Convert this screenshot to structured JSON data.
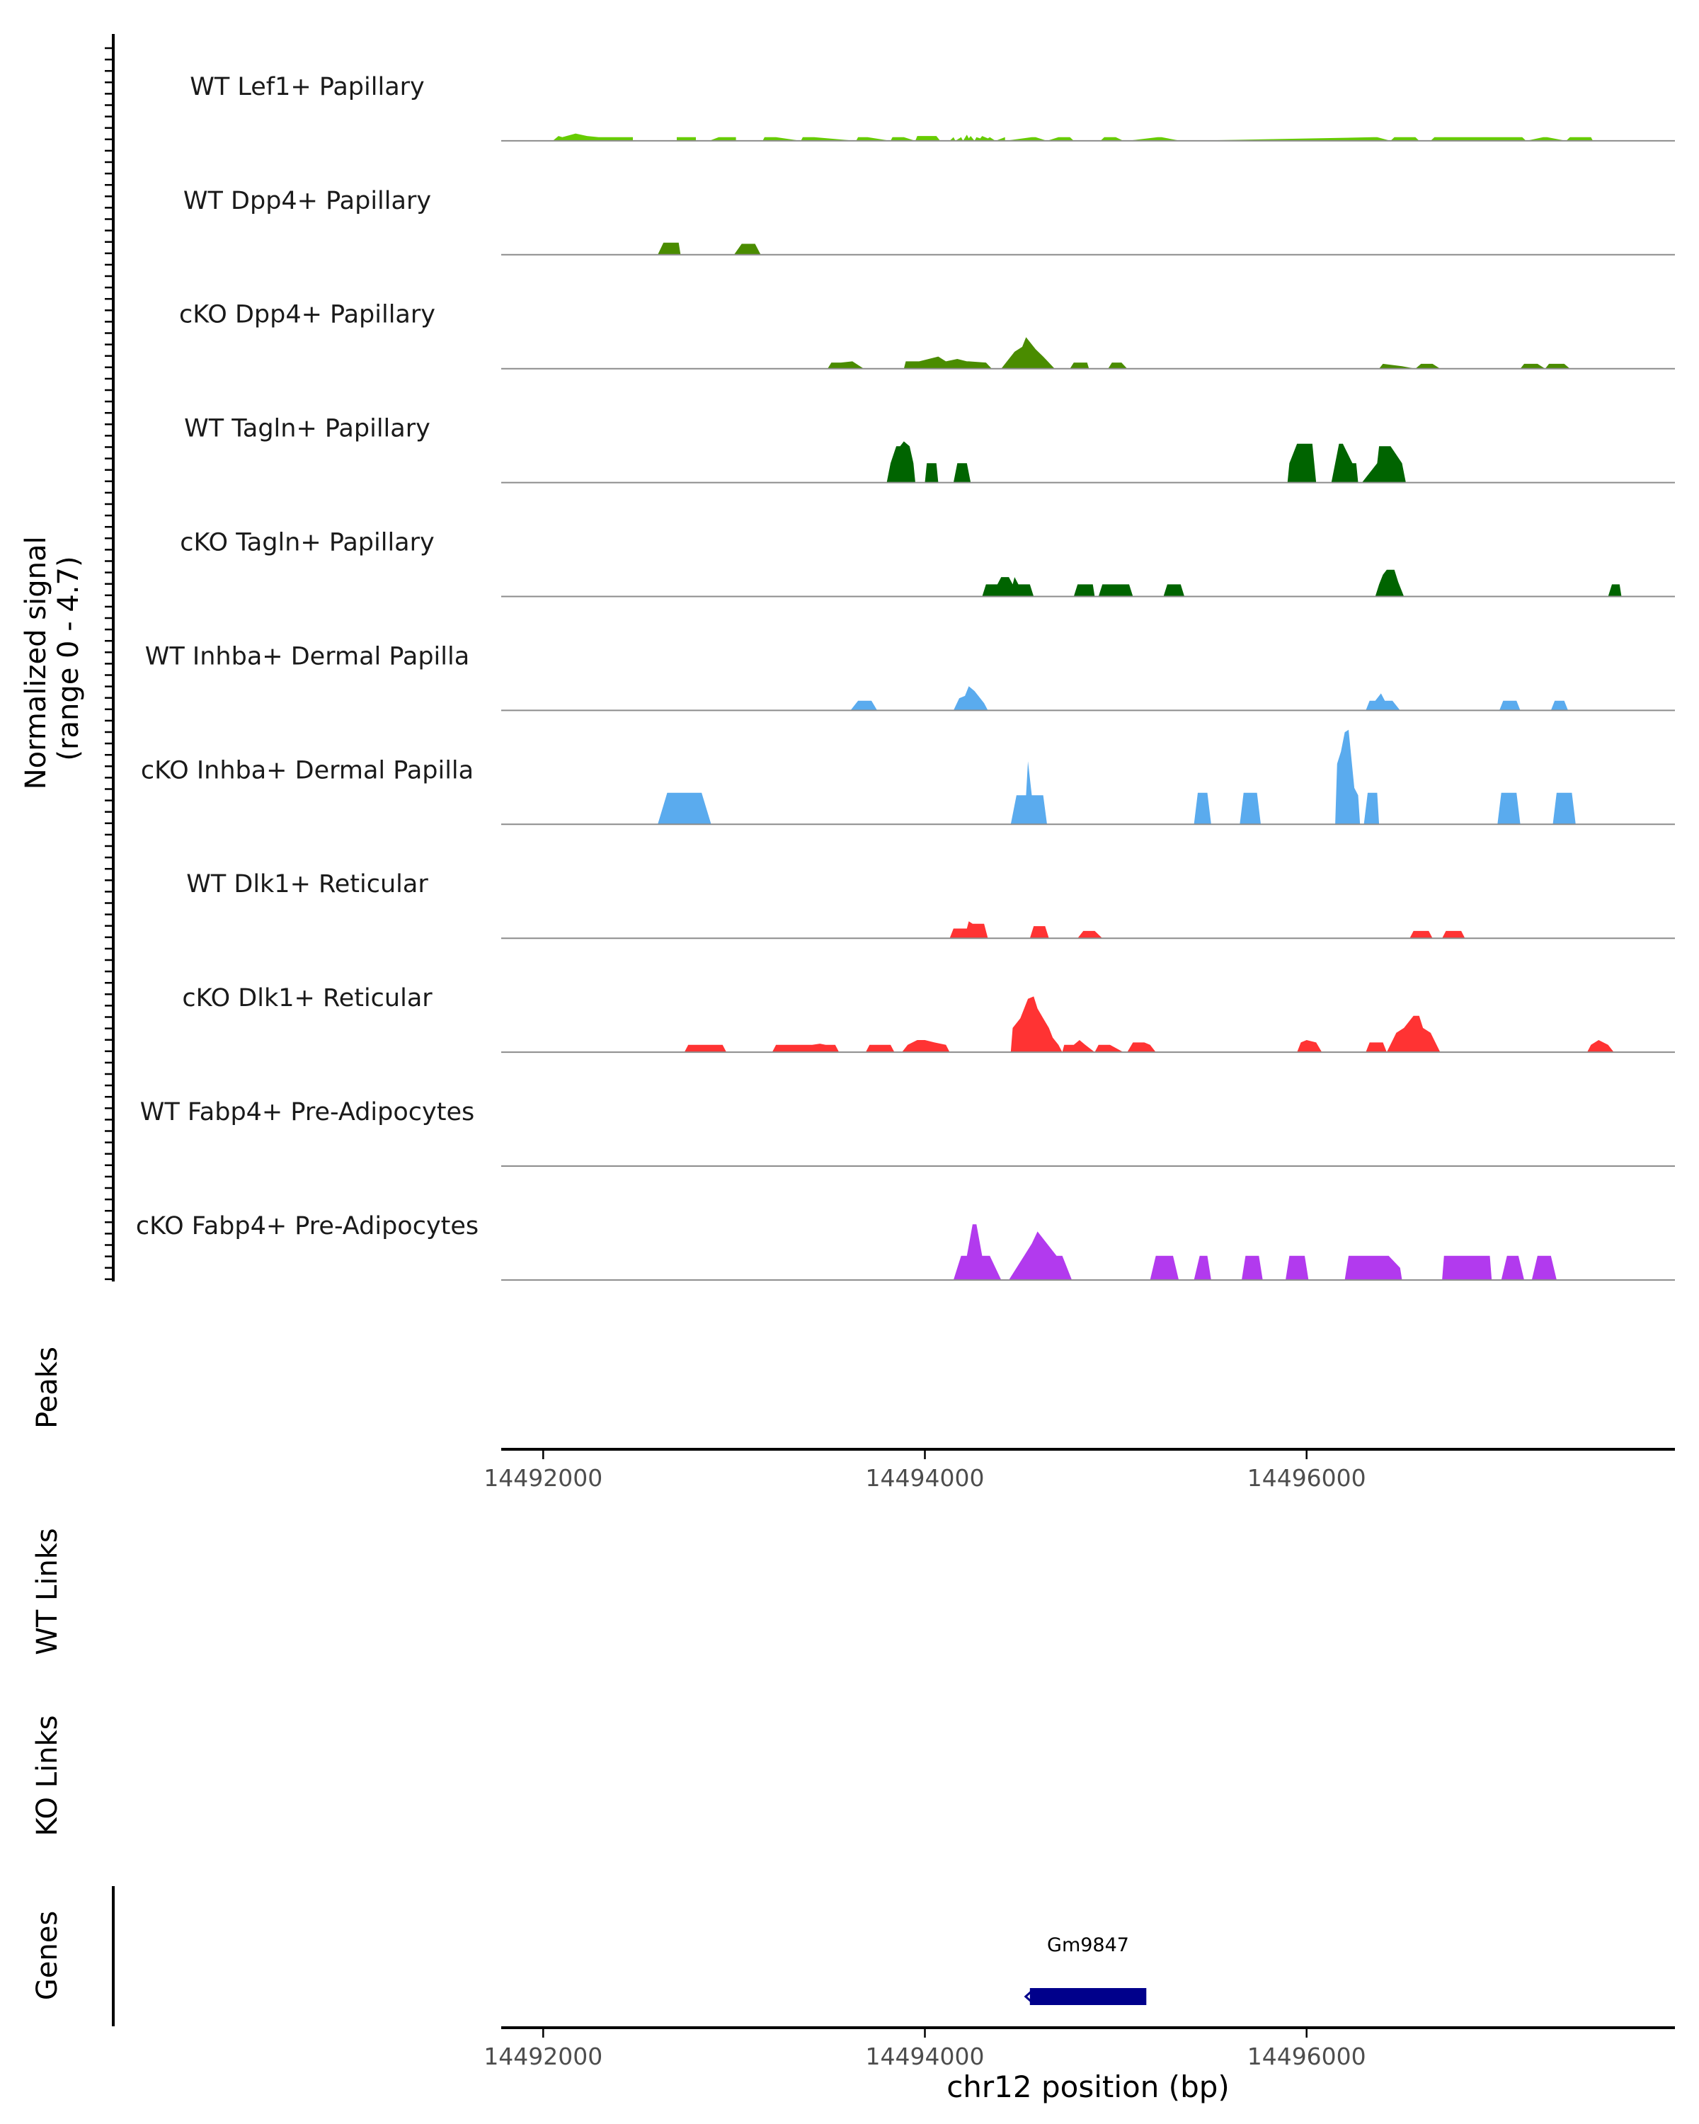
{
  "colors": {
    "lef1": "#66cc00",
    "dpp4": "#4a8c00",
    "tagln": "#006400",
    "inhba": "#5aabee",
    "dlk1": "#ff3333",
    "fabp4": "#b23aee",
    "gene": "#00008b",
    "axis": "#000000",
    "baseline": "#8c8c8c",
    "tick_text": "#4d4d4d"
  },
  "chart_data": {
    "type": "area",
    "title": "",
    "ylabel": "Normalized signal\n(range 0 - 4.7)",
    "ylim": [
      0,
      4.7
    ],
    "xlabel": "chr12 position (bp)",
    "xlim": [
      14491780,
      14497930
    ],
    "xticks": [
      14492000,
      14494000,
      14496000
    ],
    "xtick_labels": [
      "14492000",
      "14494000",
      "14496000"
    ],
    "tracks": [
      {
        "name": "WT Lef1+ Papillary",
        "color_key": "lef1",
        "x": [
          14492050,
          14492080,
          14492100,
          14492170,
          14492230,
          14492290,
          14492470,
          14492470,
          14492700,
          14492700,
          14492730,
          14492800,
          14492800,
          14492870,
          14492920,
          14493010,
          14493010,
          14493150,
          14493160,
          14493220,
          14493350,
          14493360,
          14493420,
          14493640,
          14493650,
          14493700,
          14493820,
          14493830,
          14493890,
          14493950,
          14493960,
          14494060,
          14494080,
          14494130,
          14494150,
          14494160,
          14494190,
          14494200,
          14494220,
          14494230,
          14494240,
          14494260,
          14494270,
          14494290,
          14494300,
          14494330,
          14494340,
          14494370,
          14494420,
          14494420,
          14494560,
          14494580,
          14494640,
          14494700,
          14494760,
          14494780,
          14494920,
          14494940,
          14495000,
          14495040,
          14495060,
          14495220,
          14495240,
          14495340,
          14495360,
          14496350,
          14496370,
          14496440,
          14496460,
          14496570,
          14496590,
          14496650,
          14496670,
          14497130,
          14497150,
          14497240,
          14497260,
          14497360,
          14497380,
          14497490,
          14497500
        ],
        "y": [
          0.0,
          0.2,
          0.15,
          0.3,
          0.2,
          0.15,
          0.15,
          0.0,
          0.0,
          0.15,
          0.15,
          0.15,
          0.0,
          0.0,
          0.15,
          0.15,
          0.0,
          0.0,
          0.15,
          0.15,
          0.0,
          0.15,
          0.15,
          0.0,
          0.15,
          0.15,
          0.0,
          0.15,
          0.15,
          0.0,
          0.2,
          0.2,
          0.0,
          0.0,
          0.15,
          0.0,
          0.15,
          0.0,
          0.25,
          0.1,
          0.2,
          0.0,
          0.15,
          0.1,
          0.2,
          0.1,
          0.15,
          0.0,
          0.15,
          0.0,
          0.15,
          0.15,
          0.0,
          0.15,
          0.15,
          0.0,
          0.0,
          0.15,
          0.15,
          0.0,
          0.0,
          0.15,
          0.15,
          0.0,
          0.0,
          0.15,
          0.15,
          0.0,
          0.15,
          0.15,
          0.0,
          0.0,
          0.15,
          0.15,
          0.0,
          0.15,
          0.15,
          0.0,
          0.15,
          0.15,
          0.0
        ]
      },
      {
        "name": "WT Dpp4+ Papillary",
        "color_key": "dpp4",
        "x": [
          14492600,
          14492630,
          14492710,
          14492720,
          14493000,
          14493040,
          14493110,
          14493140
        ],
        "y": [
          0.0,
          0.5,
          0.5,
          0.0,
          0.0,
          0.45,
          0.45,
          0.0
        ]
      },
      {
        "name": "cKO Dpp4+ Papillary",
        "color_key": "dpp4",
        "x": [
          14493490,
          14493510,
          14493560,
          14493620,
          14493680,
          14493890,
          14493900,
          14493970,
          14494070,
          14494110,
          14494170,
          14494220,
          14494230,
          14494320,
          14494350,
          14494400,
          14494450,
          14494470,
          14494510,
          14494530,
          14494580,
          14494620,
          14494680,
          14494760,
          14494780,
          14494850,
          14494860,
          14494960,
          14494980,
          14495030,
          14495060,
          14496380,
          14496400,
          14496500,
          14496570,
          14496600,
          14496660,
          14496700,
          14497120,
          14497140,
          14497210,
          14497250,
          14497270,
          14497350,
          14497380,
          14497450
        ],
        "y": [
          0.0,
          0.25,
          0.25,
          0.3,
          0.0,
          0.0,
          0.3,
          0.3,
          0.5,
          0.3,
          0.4,
          0.3,
          0.3,
          0.25,
          0.0,
          0.0,
          0.5,
          0.7,
          0.9,
          1.3,
          0.8,
          0.5,
          0.0,
          0.0,
          0.25,
          0.25,
          0.0,
          0.0,
          0.25,
          0.25,
          0.0,
          0.0,
          0.2,
          0.1,
          0.0,
          0.2,
          0.2,
          0.0,
          0.0,
          0.2,
          0.2,
          0.0,
          0.2,
          0.2,
          0.0,
          0.0
        ]
      },
      {
        "name": "WT Tagln+ Papillary",
        "color_key": "tagln",
        "x": [
          14493800,
          14493820,
          14493850,
          14493870,
          14493890,
          14493920,
          14493940,
          14493950,
          14494000,
          14494010,
          14494060,
          14494070,
          14494150,
          14494170,
          14494220,
          14494240,
          14495900,
          14495910,
          14495950,
          14495960,
          14496030,
          14496050,
          14496130,
          14496150,
          14496170,
          14496190,
          14496240,
          14496260,
          14496270,
          14496290,
          14496370,
          14496380,
          14496400,
          14496440,
          14496500,
          14496520
        ],
        "y": [
          0.0,
          0.8,
          1.5,
          1.5,
          1.7,
          1.5,
          0.8,
          0.0,
          0.0,
          0.8,
          0.8,
          0.0,
          0.0,
          0.8,
          0.8,
          0.0,
          0.0,
          0.8,
          1.6,
          1.6,
          1.6,
          0.0,
          0.0,
          0.8,
          1.6,
          1.6,
          0.8,
          0.8,
          0.0,
          0.0,
          0.8,
          1.5,
          1.5,
          1.5,
          0.8,
          0.0
        ]
      },
      {
        "name": "cKO Tagln+ Papillary",
        "color_key": "tagln",
        "x": [
          14494300,
          14494320,
          14494380,
          14494400,
          14494440,
          14494460,
          14494470,
          14494490,
          14494550,
          14494570,
          14494780,
          14494800,
          14494880,
          14494890,
          14494910,
          14494930,
          14495070,
          14495090,
          14495250,
          14495270,
          14495340,
          14495360,
          14496360,
          14496380,
          14496400,
          14496420,
          14496460,
          14496480,
          14496510,
          14497580,
          14497600,
          14497640,
          14497650
        ],
        "y": [
          0.0,
          0.5,
          0.5,
          0.8,
          0.8,
          0.5,
          0.8,
          0.5,
          0.5,
          0.0,
          0.0,
          0.5,
          0.5,
          0.0,
          0.0,
          0.5,
          0.5,
          0.0,
          0.0,
          0.5,
          0.5,
          0.0,
          0.0,
          0.5,
          0.9,
          1.1,
          1.1,
          0.6,
          0.0,
          0.0,
          0.5,
          0.5,
          0.0
        ]
      },
      {
        "name": "WT Inhba+ Dermal Papilla",
        "color_key": "inhba",
        "x": [
          14493610,
          14493650,
          14493720,
          14493750,
          14494150,
          14494180,
          14494210,
          14494230,
          14494260,
          14494290,
          14494310,
          14494330,
          14496310,
          14496330,
          14496360,
          14496390,
          14496410,
          14496450,
          14496490,
          14497010,
          14497030,
          14497100,
          14497120,
          14497280,
          14497300,
          14497350,
          14497370
        ],
        "y": [
          0.0,
          0.4,
          0.4,
          0.0,
          0.0,
          0.5,
          0.6,
          1.0,
          0.8,
          0.5,
          0.3,
          0.0,
          0.0,
          0.4,
          0.4,
          0.7,
          0.4,
          0.4,
          0.0,
          0.0,
          0.4,
          0.4,
          0.0,
          0.0,
          0.4,
          0.4,
          0.0
        ]
      },
      {
        "name": "cKO Inhba+ Dermal Papilla",
        "color_key": "inhba",
        "x": [
          14492600,
          14492650,
          14492830,
          14492880,
          14494450,
          14494480,
          14494530,
          14494540,
          14494560,
          14494580,
          14494620,
          14494640,
          14495410,
          14495430,
          14495480,
          14495500,
          14495650,
          14495670,
          14495740,
          14495760,
          14496150,
          14496160,
          14496180,
          14496200,
          14496220,
          14496250,
          14496270,
          14496280,
          14496300,
          14496320,
          14496370,
          14496380,
          14497000,
          14497020,
          14497100,
          14497120,
          14497290,
          14497310,
          14497390,
          14497410
        ],
        "y": [
          0.0,
          1.3,
          1.3,
          0.0,
          0.0,
          1.2,
          1.2,
          2.6,
          1.2,
          1.2,
          1.2,
          0.0,
          0.0,
          1.3,
          1.3,
          0.0,
          0.0,
          1.3,
          1.3,
          0.0,
          0.0,
          2.5,
          3.0,
          3.8,
          3.9,
          1.5,
          1.2,
          0.0,
          0.0,
          1.3,
          1.3,
          0.0,
          0.0,
          1.3,
          1.3,
          0.0,
          0.0,
          1.3,
          1.3,
          0.0
        ]
      },
      {
        "name": "WT Dlk1+ Reticular",
        "color_key": "dlk1",
        "x": [
          14494130,
          14494150,
          14494220,
          14494230,
          14494250,
          14494310,
          14494330,
          14494550,
          14494570,
          14494630,
          14494650,
          14494800,
          14494830,
          14494890,
          14494930,
          14496540,
          14496560,
          14496640,
          14496660,
          14496710,
          14496730,
          14496810,
          14496830
        ],
        "y": [
          0.0,
          0.4,
          0.4,
          0.7,
          0.6,
          0.6,
          0.0,
          0.0,
          0.5,
          0.5,
          0.0,
          0.0,
          0.3,
          0.3,
          0.0,
          0.0,
          0.3,
          0.3,
          0.0,
          0.0,
          0.3,
          0.3,
          0.0
        ]
      },
      {
        "name": "cKO Dlk1+ Reticular",
        "color_key": "dlk1",
        "x": [
          14492740,
          14492760,
          14492940,
          14492960,
          14493200,
          14493220,
          14493410,
          14493450,
          14493480,
          14493530,
          14493550,
          14493690,
          14493710,
          14493820,
          14493840,
          14493880,
          14493910,
          14493960,
          14494000,
          14494050,
          14494110,
          14494130,
          14494450,
          14494460,
          14494500,
          14494520,
          14494540,
          14494570,
          14494590,
          14494620,
          14494650,
          14494670,
          14494700,
          14494720,
          14494730,
          14494780,
          14494810,
          14494840,
          14494890,
          14494910,
          14494970,
          14495040,
          14495060,
          14495090,
          14495150,
          14495180,
          14495210,
          14495950,
          14495970,
          14496000,
          14496050,
          14496080,
          14496310,
          14496330,
          14496400,
          14496420,
          14496470,
          14496510,
          14496560,
          14496590,
          14496610,
          14496650,
          14496700,
          14497470,
          14497490,
          14497530,
          14497580,
          14497610
        ],
        "y": [
          0.0,
          0.3,
          0.3,
          0.0,
          0.0,
          0.3,
          0.3,
          0.35,
          0.3,
          0.3,
          0.0,
          0.0,
          0.3,
          0.3,
          0.0,
          0.0,
          0.3,
          0.5,
          0.5,
          0.4,
          0.3,
          0.0,
          0.0,
          1.0,
          1.4,
          1.8,
          2.2,
          2.3,
          1.8,
          1.4,
          1.0,
          0.6,
          0.3,
          0.0,
          0.3,
          0.3,
          0.5,
          0.3,
          0.0,
          0.3,
          0.3,
          0.0,
          0.0,
          0.4,
          0.4,
          0.3,
          0.0,
          0.0,
          0.4,
          0.5,
          0.4,
          0.0,
          0.0,
          0.4,
          0.4,
          0.0,
          0.8,
          1.0,
          1.5,
          1.5,
          1.0,
          0.8,
          0.0,
          0.0,
          0.3,
          0.5,
          0.3,
          0.0
        ]
      },
      {
        "name": "WT Fabp4+ Pre-Adipocytes",
        "color_key": "fabp4",
        "x": [],
        "y": []
      },
      {
        "name": "cKO Fabp4+ Pre-Adipocytes",
        "color_key": "fabp4",
        "x": [
          14494150,
          14494190,
          14494220,
          14494250,
          14494270,
          14494300,
          14494340,
          14494400,
          14494440,
          14494520,
          14494560,
          14494590,
          14494640,
          14494690,
          14494720,
          14494770,
          14495180,
          14495210,
          14495300,
          14495330,
          14495410,
          14495440,
          14495480,
          14495500,
          14495660,
          14495680,
          14495750,
          14495770,
          14495890,
          14495910,
          14495990,
          14496010,
          14496200,
          14496220,
          14496390,
          14496430,
          14496490,
          14496500,
          14496520,
          14496540,
          14496710,
          14496720,
          14496960,
          14496970,
          14497020,
          14497050,
          14497110,
          14497140,
          14497180,
          14497210,
          14497280,
          14497310
        ],
        "y": [
          0.0,
          1.0,
          1.0,
          2.3,
          2.3,
          1.0,
          1.0,
          0.0,
          0.0,
          1.0,
          1.5,
          2.0,
          1.5,
          1.0,
          1.0,
          0.0,
          0.0,
          1.0,
          1.0,
          0.0,
          0.0,
          1.0,
          1.0,
          0.0,
          0.0,
          1.0,
          1.0,
          0.0,
          0.0,
          1.0,
          1.0,
          0.0,
          0.0,
          1.0,
          1.0,
          1.0,
          0.5,
          0.0,
          0.0,
          0.0,
          0.0,
          1.0,
          1.0,
          0.0,
          0.0,
          1.0,
          1.0,
          0.0,
          0.0,
          1.0,
          1.0,
          0.0
        ]
      }
    ],
    "panels": {
      "peaks_label": "Peaks",
      "wt_links_label": "WT Links",
      "ko_links_label": "KO Links",
      "genes_label": "Genes"
    },
    "genes": [
      {
        "name": "Gm9847",
        "start": 14494550,
        "end": 14495160,
        "strand": "-"
      }
    ]
  }
}
